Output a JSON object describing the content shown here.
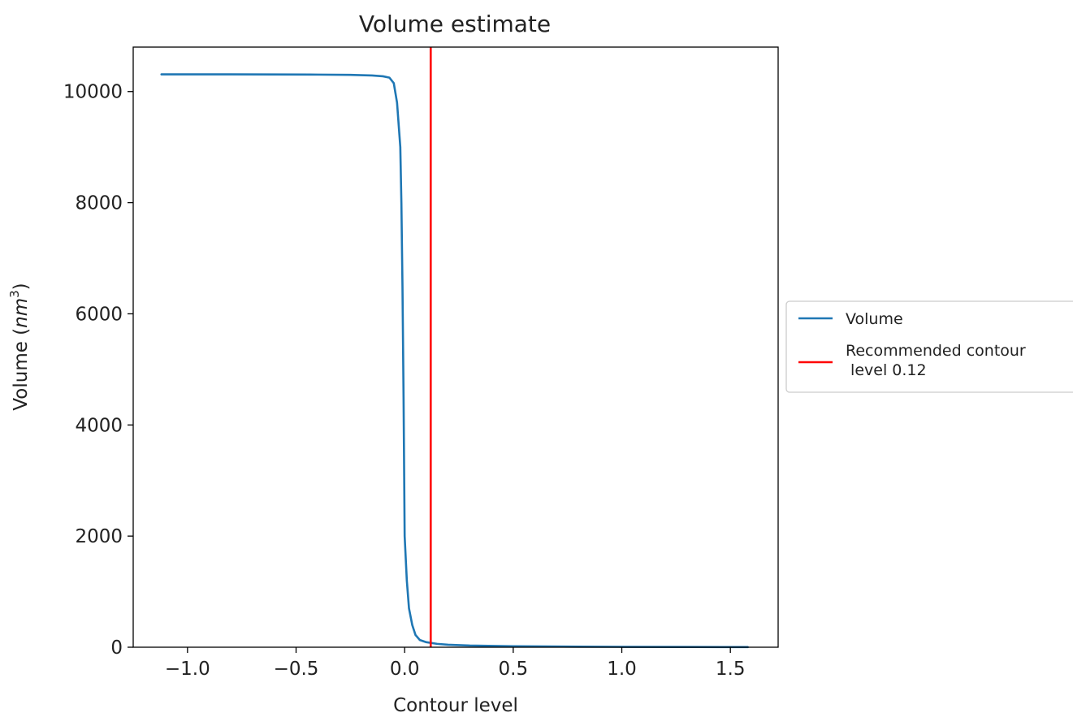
{
  "chart_data": {
    "type": "line",
    "title": "Volume estimate",
    "xlabel": "Contour level",
    "ylabel": "Volume (nm³)",
    "ylabel_parts": {
      "prefix": "Volume (",
      "unit": "nm",
      "exponent": "3",
      "suffix": ")"
    },
    "xlim": [
      -1.25,
      1.72
    ],
    "ylim": [
      0,
      10800
    ],
    "x_ticks": [
      -1.0,
      -0.5,
      0.0,
      0.5,
      1.0,
      1.5
    ],
    "x_tick_labels": [
      "−1.0",
      "−0.5",
      "0.0",
      "0.5",
      "1.0",
      "1.5"
    ],
    "y_ticks": [
      0,
      2000,
      4000,
      6000,
      8000,
      10000
    ],
    "y_tick_labels": [
      "0",
      "2000",
      "4000",
      "6000",
      "8000",
      "10000"
    ],
    "grid": false,
    "legend_position": "outside right",
    "series": [
      {
        "name": "Volume",
        "color": "#1f77b4",
        "x": [
          -1.12,
          -1.0,
          -0.8,
          -0.6,
          -0.4,
          -0.25,
          -0.15,
          -0.1,
          -0.07,
          -0.05,
          -0.035,
          -0.02,
          -0.015,
          -0.01,
          -0.005,
          0.0,
          0.01,
          0.02,
          0.035,
          0.05,
          0.07,
          0.1,
          0.15,
          0.2,
          0.3,
          0.5,
          0.8,
          1.0,
          1.3,
          1.58
        ],
        "y": [
          10310,
          10310,
          10310,
          10308,
          10305,
          10300,
          10290,
          10275,
          10250,
          10150,
          9800,
          9000,
          8000,
          6500,
          4500,
          2000,
          1200,
          700,
          400,
          220,
          130,
          90,
          60,
          45,
          30,
          18,
          10,
          7,
          4,
          2
        ]
      }
    ],
    "vlines": [
      {
        "name": "Recommended contour\n level 0.12",
        "x": 0.12,
        "color": "#ff0000"
      }
    ],
    "legend_entries": [
      {
        "label": "Volume",
        "color": "#1f77b4"
      },
      {
        "label_line1": "Recommended contour",
        "label_line2": " level 0.12",
        "color": "#ff0000"
      }
    ]
  }
}
